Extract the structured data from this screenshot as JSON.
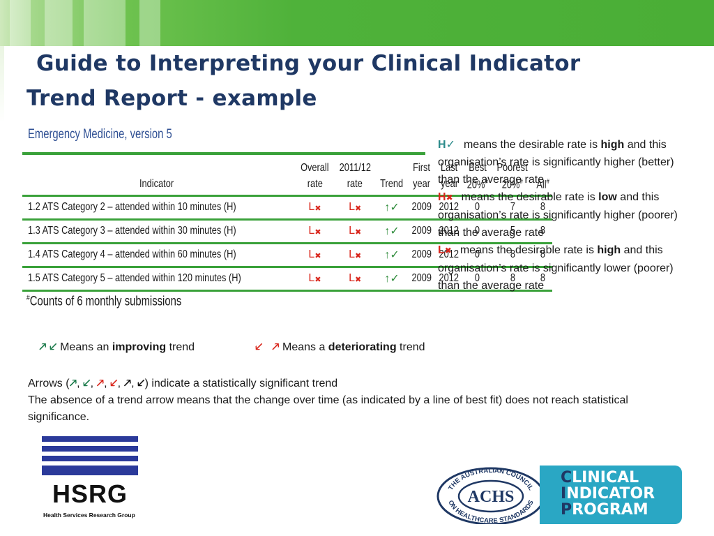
{
  "title": {
    "line1": "Guide to Interpreting your Clinical Indicator",
    "line2": "Trend Report - example"
  },
  "table": {
    "caption": "Emergency Medicine, version 5",
    "header_row1": [
      "",
      "Overall",
      "2011/12",
      "",
      "First",
      "Last",
      "Best",
      "Poorest",
      ""
    ],
    "header_row2": [
      "Indicator",
      "rate",
      "rate",
      "Trend",
      "year",
      "year",
      "20%#",
      "20%#",
      "All#"
    ],
    "rows": [
      {
        "indicator": "1.2 ATS Category 2 – attended within 10 minutes (H)",
        "overall": "L",
        "rate": "L",
        "trend": "↑✓",
        "first": "2009",
        "last": "2012",
        "best": "0",
        "poorest": "7",
        "all": "8"
      },
      {
        "indicator": "1.3 ATS Category 3 – attended within 30 minutes (H)",
        "overall": "L",
        "rate": "L",
        "trend": "↑✓",
        "first": "2009",
        "last": "2012",
        "best": "0",
        "poorest": "5",
        "all": "8"
      },
      {
        "indicator": "1.4 ATS Category 4 – attended within 60 minutes (H)",
        "overall": "L",
        "rate": "L",
        "trend": "↑✓",
        "first": "2009",
        "last": "2012",
        "best": "0",
        "poorest": "8",
        "all": "8"
      },
      {
        "indicator": "1.5 ATS Category 5 – attended within 120 minutes (H)",
        "overall": "L",
        "rate": "L",
        "trend": "↑✓",
        "first": "2009",
        "last": "2012",
        "best": "0",
        "poorest": "8",
        "all": "8"
      }
    ],
    "footnote": "Counts of 6 monthly submissions"
  },
  "legend": [
    {
      "key": "H",
      "mark": "✓",
      "color": "#2a8a8a",
      "pre": "means the desirable rate is ",
      "bold": "high",
      "post": " and this organisation’s rate is significantly higher (better) than the average rate"
    },
    {
      "key": "H",
      "mark": "✖",
      "color": "#d9261c",
      "pre": "means the desirable rate is ",
      "bold": "low",
      "post": " and this organisation’s rate is significantly higher (poorer) than the average rate"
    },
    {
      "key": "L",
      "mark": "✖",
      "color": "#d9261c",
      "pre": "means the desirable rate is ",
      "bold": "high",
      "post": " and this organisation’s rate is significantly lower (poorer) than the average rate"
    }
  ],
  "trend_key": {
    "improving": {
      "pre": "Means an ",
      "bold": "improving",
      "post": " trend"
    },
    "deteriorating": {
      "pre": "Means a ",
      "bold": "deteriorating",
      "post": " trend"
    }
  },
  "notes": {
    "arrows_pre": "Arrows (",
    "arrows_post": ") indicate a statistically significant trend",
    "absence": "The absence of a trend arrow means that the change over time (as indicated by a line of best fit) does not reach statistical significance."
  },
  "logos": {
    "hsrg_big": "HSRG",
    "hsrg_small": "Health Services Research Group",
    "achs_seal": "THE AUSTRALIAN COUNCIL ON HEALTHCARE STANDARDS",
    "achs_mark": "ACHS",
    "cip_line1": "CLINICAL",
    "cip_line2": "INDICATOR",
    "cip_line3": "PROGRAM"
  },
  "colors": {
    "brand_green": "#4aae36",
    "title_navy": "#1f3864",
    "rule_green": "#3aa13a",
    "alert_red": "#d9261c",
    "positive_teal": "#2a8a8a",
    "cip_blue": "#2aa7c4"
  }
}
